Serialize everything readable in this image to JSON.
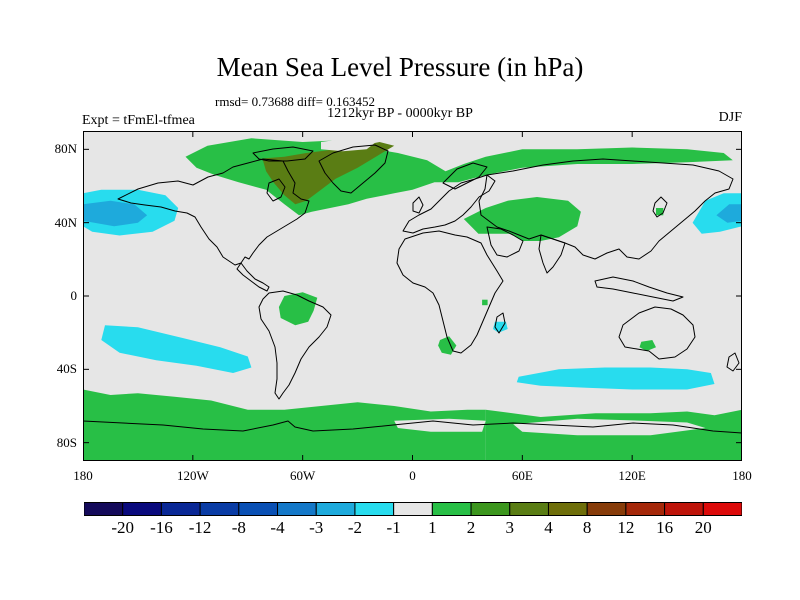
{
  "title": "Mean Sea Level Pressure (in hPa)",
  "stats_text": "rmsd= 0.73688 diff= 0.163452",
  "experiment": "Expt = tFmEl-tfmea",
  "period": "1212kyr BP - 0000kyr BP",
  "season": "DJF",
  "chart_data": {
    "type": "heatmap",
    "projection": "cylindrical-equidistant",
    "title": "Mean Sea Level Pressure (in hPa)",
    "xlim": [
      -180,
      180
    ],
    "ylim": [
      -90,
      90
    ],
    "x_ticks": [
      {
        "value": -180,
        "label": "180"
      },
      {
        "value": -120,
        "label": "120W"
      },
      {
        "value": -60,
        "label": "60W"
      },
      {
        "value": 0,
        "label": "0"
      },
      {
        "value": 60,
        "label": "60E"
      },
      {
        "value": 120,
        "label": "120E"
      },
      {
        "value": 180,
        "label": "180"
      }
    ],
    "y_ticks": [
      {
        "value": 80,
        "label": "80N"
      },
      {
        "value": 40,
        "label": "40N"
      },
      {
        "value": 0,
        "label": "0"
      },
      {
        "value": -40,
        "label": "40S"
      },
      {
        "value": -80,
        "label": "80S"
      }
    ],
    "colorbar": {
      "labels": [
        "-20",
        "-16",
        "-12",
        "-8",
        "-4",
        "-3",
        "-2",
        "-1",
        "1",
        "2",
        "3",
        "4",
        "8",
        "12",
        "16",
        "20"
      ],
      "colors": [
        "#140a5a",
        "#0a0a7d",
        "#0a2896",
        "#0a3ca5",
        "#0a50b4",
        "#1478c8",
        "#1eaadc",
        "#28dcee",
        "#e6e6e6",
        "#28bf46",
        "#3c961e",
        "#5a7d14",
        "#6e6e0a",
        "#873c0a",
        "#a5280a",
        "#be140a",
        "#dc0a0a"
      ]
    },
    "default_value_color": "#e6e6e6",
    "regions": [
      {
        "name": "greenland-atlantic-positive",
        "level": "1 to 2",
        "color": "#28bf46",
        "lonlat": [
          [
            -112,
            82
          ],
          [
            -88,
            86
          ],
          [
            -60,
            84
          ],
          [
            -40,
            85
          ],
          [
            -20,
            80
          ],
          [
            -8,
            78
          ],
          [
            8,
            74
          ],
          [
            18,
            68
          ],
          [
            28,
            72
          ],
          [
            40,
            76
          ],
          [
            60,
            80
          ],
          [
            90,
            80
          ],
          [
            120,
            81
          ],
          [
            150,
            80
          ],
          [
            170,
            78
          ],
          [
            175,
            74
          ],
          [
            150,
            73
          ],
          [
            120,
            72
          ],
          [
            90,
            72
          ],
          [
            60,
            70
          ],
          [
            40,
            66
          ],
          [
            25,
            62
          ],
          [
            12,
            62
          ],
          [
            0,
            58
          ],
          [
            -10,
            56
          ],
          [
            -25,
            53
          ],
          [
            -35,
            50
          ],
          [
            -45,
            48
          ],
          [
            -55,
            46
          ],
          [
            -62,
            44
          ],
          [
            -70,
            50
          ],
          [
            -80,
            58
          ],
          [
            -95,
            62
          ],
          [
            -108,
            66
          ],
          [
            -118,
            70
          ],
          [
            -124,
            76
          ]
        ]
      },
      {
        "name": "greenland-positive-core",
        "level": "3 to 4",
        "color": "#5a7d14",
        "lonlat": [
          [
            -82,
            75
          ],
          [
            -70,
            76
          ],
          [
            -58,
            78
          ],
          [
            -42,
            80
          ],
          [
            -28,
            82
          ],
          [
            -18,
            84
          ],
          [
            -10,
            82
          ],
          [
            -20,
            76
          ],
          [
            -30,
            70
          ],
          [
            -42,
            64
          ],
          [
            -50,
            58
          ],
          [
            -58,
            52
          ],
          [
            -64,
            50
          ],
          [
            -70,
            55
          ],
          [
            -76,
            62
          ],
          [
            -80,
            68
          ]
        ]
      },
      {
        "name": "arctic-ice-neutral",
        "level": "-1 to 1",
        "color": "#e6e6e6",
        "lonlat": [
          [
            -50,
            84
          ],
          [
            -35,
            86
          ],
          [
            -20,
            84
          ],
          [
            -25,
            80
          ],
          [
            -38,
            79
          ],
          [
            -50,
            80
          ]
        ]
      },
      {
        "name": "central-asia-positive",
        "level": "1 to 2",
        "color": "#28bf46",
        "lonlat": [
          [
            28,
            42
          ],
          [
            40,
            48
          ],
          [
            52,
            52
          ],
          [
            68,
            54
          ],
          [
            85,
            52
          ],
          [
            92,
            46
          ],
          [
            90,
            38
          ],
          [
            80,
            32
          ],
          [
            70,
            30
          ],
          [
            60,
            30
          ],
          [
            54,
            34
          ],
          [
            45,
            34
          ],
          [
            36,
            34
          ]
        ]
      },
      {
        "name": "south-america-positive",
        "level": "1 to 2",
        "color": "#28bf46",
        "lonlat": [
          [
            -70,
            0
          ],
          [
            -60,
            2
          ],
          [
            -52,
            -1
          ],
          [
            -54,
            -8
          ],
          [
            -57,
            -14
          ],
          [
            -64,
            -16
          ],
          [
            -72,
            -12
          ],
          [
            -73,
            -6
          ]
        ]
      },
      {
        "name": "south-africa-positive",
        "level": "1 to 2",
        "color": "#28bf46",
        "lonlat": [
          [
            15,
            -24
          ],
          [
            20,
            -22
          ],
          [
            24,
            -27
          ],
          [
            21,
            -32
          ],
          [
            16,
            -31
          ],
          [
            14,
            -27
          ]
        ]
      },
      {
        "name": "madagascar-negative",
        "level": "-2 to -1",
        "color": "#28dcee",
        "lonlat": [
          [
            45,
            -14
          ],
          [
            51,
            -14
          ],
          [
            52,
            -18
          ],
          [
            47,
            -20
          ],
          [
            44,
            -18
          ]
        ]
      },
      {
        "name": "australia-positive",
        "level": "1 to 2",
        "color": "#28bf46",
        "lonlat": [
          [
            125,
            -25
          ],
          [
            131,
            -24
          ],
          [
            133,
            -28
          ],
          [
            128,
            -30
          ],
          [
            124,
            -28
          ]
        ]
      },
      {
        "name": "south-pacific-negative",
        "level": "-2 to -1",
        "color": "#28dcee",
        "lonlat": [
          [
            -168,
            -16
          ],
          [
            -150,
            -17
          ],
          [
            -125,
            -23
          ],
          [
            -105,
            -28
          ],
          [
            -90,
            -33
          ],
          [
            -88,
            -39
          ],
          [
            -98,
            -42
          ],
          [
            -118,
            -38
          ],
          [
            -140,
            -35
          ],
          [
            -160,
            -31
          ],
          [
            -170,
            -24
          ]
        ]
      },
      {
        "name": "southern-ocean-negative",
        "level": "-2 to -1",
        "color": "#28dcee",
        "lonlat": [
          [
            58,
            -44
          ],
          [
            80,
            -40
          ],
          [
            105,
            -39
          ],
          [
            130,
            -39
          ],
          [
            150,
            -40
          ],
          [
            163,
            -42
          ],
          [
            165,
            -48
          ],
          [
            150,
            -51
          ],
          [
            120,
            -51
          ],
          [
            95,
            -50
          ],
          [
            70,
            -49
          ],
          [
            57,
            -47
          ]
        ]
      },
      {
        "name": "southern-ocean-positive-west",
        "level": "1 to 2",
        "color": "#28bf46",
        "lonlat": [
          [
            -180,
            -51
          ],
          [
            -165,
            -54
          ],
          [
            -150,
            -53
          ],
          [
            -130,
            -55
          ],
          [
            -110,
            -57
          ],
          [
            -90,
            -62
          ],
          [
            -70,
            -62
          ],
          [
            -50,
            -60
          ],
          [
            -30,
            -58
          ],
          [
            -10,
            -60
          ],
          [
            10,
            -63
          ],
          [
            30,
            -62
          ],
          [
            40,
            -62
          ],
          [
            40,
            -90
          ],
          [
            -180,
            -90
          ]
        ]
      },
      {
        "name": "antarctic-neutral-patch",
        "level": "-1 to 1",
        "color": "#e6e6e6",
        "lonlat": [
          [
            -10,
            -68
          ],
          [
            20,
            -67
          ],
          [
            40,
            -68
          ],
          [
            38,
            -74
          ],
          [
            10,
            -74
          ],
          [
            -8,
            -72
          ]
        ]
      },
      {
        "name": "southern-ocean-positive-east",
        "level": "1 to 2",
        "color": "#28bf46",
        "lonlat": [
          [
            40,
            -62
          ],
          [
            70,
            -66
          ],
          [
            100,
            -64
          ],
          [
            130,
            -64
          ],
          [
            150,
            -63
          ],
          [
            165,
            -65
          ],
          [
            180,
            -62
          ],
          [
            180,
            -90
          ],
          [
            40,
            -90
          ]
        ]
      },
      {
        "name": "east-antarctic-neutral",
        "level": "-1 to 1",
        "color": "#e6e6e6",
        "lonlat": [
          [
            55,
            -70
          ],
          [
            90,
            -67
          ],
          [
            125,
            -68
          ],
          [
            150,
            -69
          ],
          [
            160,
            -72
          ],
          [
            130,
            -76
          ],
          [
            90,
            -76
          ],
          [
            60,
            -74
          ]
        ]
      },
      {
        "name": "north-pacific-negative-west",
        "level": "-2 to -1",
        "color": "#28dcee",
        "lonlat": [
          [
            -180,
            56
          ],
          [
            -170,
            58
          ],
          [
            -150,
            58
          ],
          [
            -135,
            55
          ],
          [
            -128,
            48
          ],
          [
            -130,
            41
          ],
          [
            -142,
            35
          ],
          [
            -160,
            33
          ],
          [
            -175,
            35
          ],
          [
            -180,
            38
          ]
        ]
      },
      {
        "name": "north-pacific-core-west",
        "level": "-3 to -2",
        "color": "#1eaadc",
        "lonlat": [
          [
            -180,
            50
          ],
          [
            -165,
            52
          ],
          [
            -152,
            50
          ],
          [
            -145,
            44
          ],
          [
            -150,
            40
          ],
          [
            -163,
            38
          ],
          [
            -180,
            41
          ]
        ]
      },
      {
        "name": "north-pacific-negative-east",
        "level": "-2 to -1",
        "color": "#28dcee",
        "lonlat": [
          [
            153,
            40
          ],
          [
            160,
            52
          ],
          [
            170,
            56
          ],
          [
            180,
            56
          ],
          [
            180,
            38
          ],
          [
            168,
            35
          ],
          [
            158,
            34
          ]
        ]
      },
      {
        "name": "north-pacific-core-east",
        "level": "-3 to -2",
        "color": "#1eaadc",
        "lonlat": [
          [
            166,
            44
          ],
          [
            173,
            50
          ],
          [
            180,
            50
          ],
          [
            180,
            41
          ],
          [
            172,
            40
          ]
        ]
      },
      {
        "name": "equatorial-green-dot",
        "level": "1 to 2",
        "color": "#28bf46",
        "lonlat": [
          [
            38,
            -2
          ],
          [
            41,
            -2
          ],
          [
            41,
            -5
          ],
          [
            38,
            -5
          ]
        ]
      },
      {
        "name": "japan-green-dot",
        "level": "1 to 2",
        "color": "#28bf46",
        "lonlat": [
          [
            133,
            48
          ],
          [
            137,
            48
          ],
          [
            137,
            44
          ],
          [
            133,
            44
          ]
        ]
      }
    ]
  }
}
